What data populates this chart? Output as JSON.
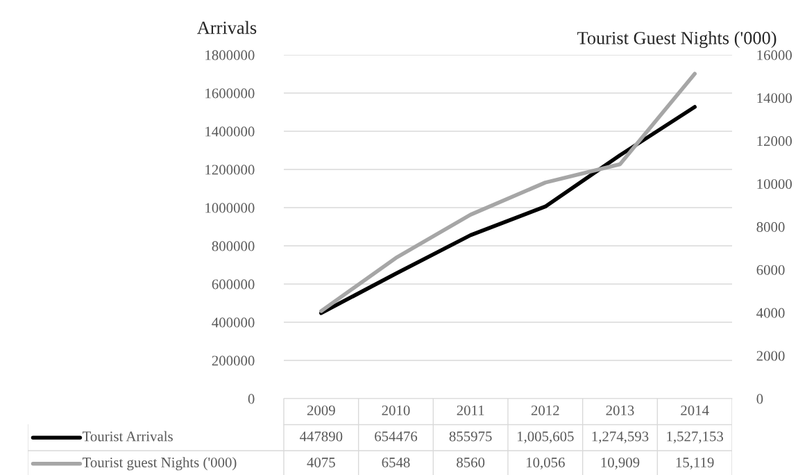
{
  "chart_data": {
    "type": "line",
    "ylabel": "Arrivals",
    "y2label": "Tourist Guest Nights ('000)",
    "categories": [
      "2009",
      "2010",
      "2011",
      "2012",
      "2013",
      "2014"
    ],
    "series": [
      {
        "name": "Tourist Arrivals",
        "color": "#000000",
        "values": [
          447890,
          654476,
          855975,
          1005605,
          1274593,
          1527153
        ],
        "value_labels": [
          "447890",
          "654476",
          "855975",
          "1,005,605",
          "1,274,593",
          "1,527,153"
        ]
      },
      {
        "name": "Tourist guest Nights ('000)",
        "color": "#a6a6a6",
        "axis": "y2",
        "values": [
          4075,
          6548,
          8560,
          10056,
          10909,
          15119
        ],
        "value_labels": [
          "4075",
          "6548",
          "8560",
          "10,056",
          "10,909",
          "15,119"
        ]
      }
    ],
    "ylim": [
      0,
      1800000
    ],
    "yticks": [
      0,
      200000,
      400000,
      600000,
      800000,
      1000000,
      1200000,
      1400000,
      1600000,
      1800000
    ],
    "y2lim": [
      0,
      16000
    ],
    "y2ticks": [
      0,
      2000,
      4000,
      6000,
      8000,
      10000,
      12000,
      14000,
      16000
    ],
    "grid": "y",
    "legend": "bottom",
    "line_style": "solid",
    "marker": "none"
  }
}
